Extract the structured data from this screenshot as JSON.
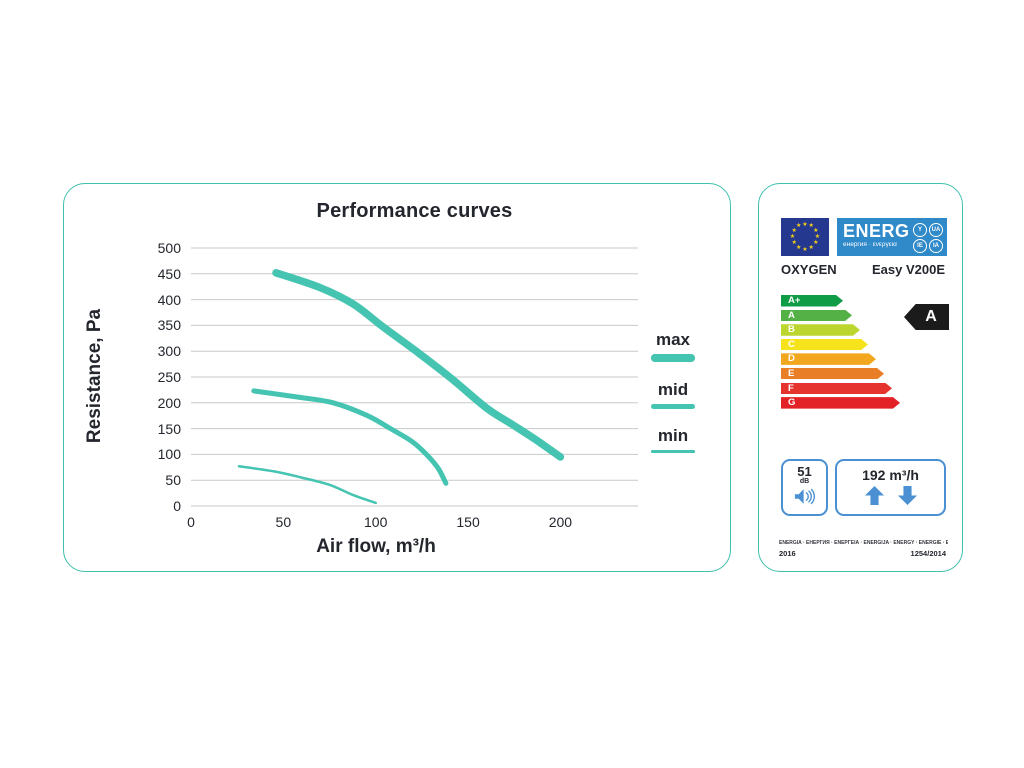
{
  "chart_data": {
    "type": "line",
    "title": "Performance curves",
    "xlabel": "Air flow, m³/h",
    "ylabel": "Resistance, Pa",
    "xlim": [
      0,
      242
    ],
    "ylim": [
      0,
      500
    ],
    "xticks": [
      0,
      50,
      100,
      150,
      200
    ],
    "yticks": [
      0,
      50,
      100,
      150,
      200,
      250,
      300,
      350,
      400,
      450,
      500
    ],
    "grid": "horizontal-only",
    "legend_position": "right-outside",
    "line_color": "#45c4b1",
    "grid_color": "#c9c9c9",
    "series": [
      {
        "name": "max",
        "line_width": 7.5,
        "points": [
          [
            46,
            452
          ],
          [
            70,
            423
          ],
          [
            88,
            391
          ],
          [
            104,
            347
          ],
          [
            123,
            297
          ],
          [
            141,
            247
          ],
          [
            160,
            190
          ],
          [
            173,
            160
          ],
          [
            186,
            130
          ],
          [
            200,
            95
          ]
        ]
      },
      {
        "name": "mid",
        "line_width": 5,
        "points": [
          [
            34,
            223
          ],
          [
            60,
            210
          ],
          [
            77,
            200
          ],
          [
            95,
            176
          ],
          [
            108,
            150
          ],
          [
            120,
            124
          ],
          [
            128,
            98
          ],
          [
            134,
            72
          ],
          [
            138,
            44
          ]
        ]
      },
      {
        "name": "min",
        "line_width": 2.5,
        "points": [
          [
            26,
            77
          ],
          [
            45,
            67
          ],
          [
            60,
            55
          ],
          [
            75,
            41
          ],
          [
            88,
            21
          ],
          [
            100,
            6
          ]
        ]
      }
    ]
  },
  "energy_label": {
    "logo": {
      "text": "ENERG",
      "subtext": "енергия · ενεργεια",
      "badges": [
        "Y",
        "UA",
        "IE",
        "IA"
      ],
      "eu_blue": "#24388f",
      "energ_blue": "#3089c9",
      "star_yellow": "#f7d117"
    },
    "brand": "OXYGEN",
    "model": "Easy V200E",
    "classes": [
      {
        "label": "A+",
        "color": "#0e9c47",
        "width": 62
      },
      {
        "label": "A",
        "color": "#54b146",
        "width": 71
      },
      {
        "label": "B",
        "color": "#bdd62f",
        "width": 79
      },
      {
        "label": "C",
        "color": "#f6e31c",
        "width": 87
      },
      {
        "label": "D",
        "color": "#f2a71f",
        "width": 95
      },
      {
        "label": "E",
        "color": "#e87f27",
        "width": 103
      },
      {
        "label": "F",
        "color": "#e4342d",
        "width": 111
      },
      {
        "label": "G",
        "color": "#e32228",
        "width": 119
      }
    ],
    "rating": "A",
    "noise": {
      "value": "51",
      "unit": "dB"
    },
    "airflow": "192 m³/h",
    "footer_line": "ENERGIA · ЕНЕРГИЯ · ΕΝΕΡΓΕΙΑ · ENERGIJA · ENERGY · ENERGIE · ENERGI",
    "year": "2016",
    "regulation": "1254/2014",
    "accent_blue": "#4a90d2"
  }
}
